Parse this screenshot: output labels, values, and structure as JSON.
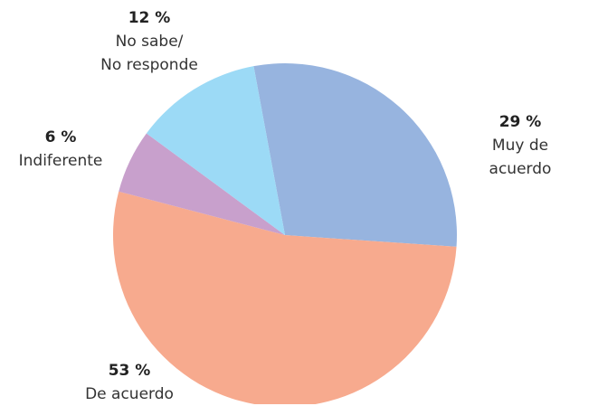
{
  "chart_data": {
    "type": "pie",
    "categories": [
      "Muy de acuerdo",
      "De acuerdo",
      "Indiferente",
      "No sabe/\nNo responde"
    ],
    "values": [
      29,
      53,
      6,
      12
    ],
    "value_labels": [
      "29 %",
      "53 %",
      "6 %",
      "12 %"
    ],
    "colors": [
      "#97b4df",
      "#f7aa8e",
      "#c8a0cc",
      "#9cdaf6"
    ]
  }
}
